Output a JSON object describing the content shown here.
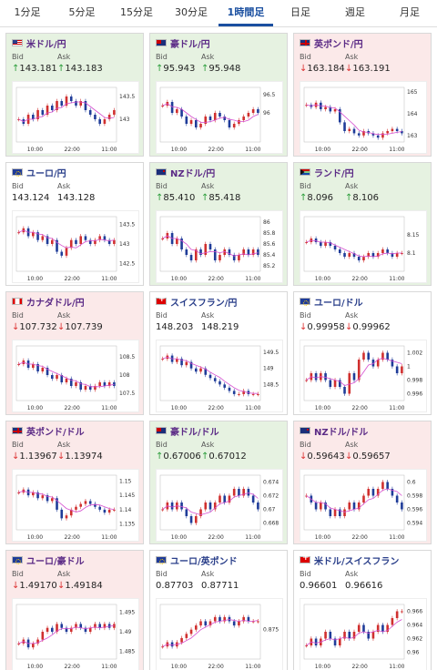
{
  "tabs": [
    {
      "label": "1分足",
      "active": false
    },
    {
      "label": "5分足",
      "active": false
    },
    {
      "label": "15分足",
      "active": false
    },
    {
      "label": "30分足",
      "active": false
    },
    {
      "label": "1時間足",
      "active": true
    },
    {
      "label": "日足",
      "active": false
    },
    {
      "label": "週足",
      "active": false
    },
    {
      "label": "月足",
      "active": false
    }
  ],
  "bid_label": "Bid",
  "ask_label": "Ask",
  "colors": {
    "up": "#2a9d3a",
    "down": "#d33",
    "tab_active": "#1a4fa0",
    "candle_up": "#d0302f",
    "candle_down": "#1f3c99",
    "ma": "#d64fd0"
  },
  "cards": [
    {
      "pair": "米ドル/円",
      "flag": "us",
      "trend": "up",
      "bid": "143.181",
      "ask": "143.183",
      "bid_dir": "up",
      "ask_dir": "up",
      "yticks": [
        "143.5",
        "143"
      ],
      "ylim": [
        142.5,
        143.7
      ],
      "xticks": [
        "10:00",
        "22:00",
        "11:00"
      ],
      "series": [
        143.0,
        142.9,
        143.1,
        143.0,
        143.2,
        143.1,
        143.3,
        143.2,
        143.4,
        143.3,
        143.5,
        143.4,
        143.3,
        143.4,
        143.2,
        143.1,
        143.0,
        142.9,
        143.0,
        143.1,
        143.2
      ]
    },
    {
      "pair": "豪ドル/円",
      "flag": "au",
      "trend": "up",
      "bid": "95.943",
      "ask": "95.948",
      "bid_dir": "up",
      "ask_dir": "up",
      "yticks": [
        "96.5",
        "96"
      ],
      "ylim": [
        95.2,
        96.7
      ],
      "xticks": [
        "10:00",
        "22:00",
        "11:00"
      ],
      "series": [
        96.2,
        96.3,
        96.0,
        96.1,
        95.9,
        95.7,
        95.8,
        95.6,
        95.7,
        95.9,
        95.8,
        96.0,
        95.9,
        95.8,
        95.6,
        95.7,
        95.8,
        95.9,
        96.0,
        96.1,
        96.0
      ]
    },
    {
      "pair": "英ポンド/円",
      "flag": "uk",
      "trend": "down",
      "bid": "163.184",
      "ask": "163.191",
      "bid_dir": "down",
      "ask_dir": "down",
      "yticks": [
        "165",
        "164",
        "163"
      ],
      "ylim": [
        162.7,
        165.2
      ],
      "xticks": [
        "10:00",
        "22:00",
        "11:00"
      ],
      "series": [
        164.4,
        164.3,
        164.5,
        164.2,
        164.3,
        164.1,
        164.2,
        163.6,
        163.2,
        163.3,
        163.1,
        163.0,
        163.2,
        163.1,
        163.0,
        162.9,
        163.1,
        163.2,
        163.3,
        163.2,
        163.1
      ]
    },
    {
      "pair": "ユーロ/円",
      "flag": "eu",
      "trend": "flat",
      "bid": "143.124",
      "ask": "143.128",
      "bid_dir": "none",
      "ask_dir": "none",
      "yticks": [
        "143.5",
        "143",
        "142.5"
      ],
      "ylim": [
        142.3,
        143.7
      ],
      "xticks": [
        "10:00",
        "22:00",
        "11:00"
      ],
      "series": [
        143.3,
        143.4,
        143.2,
        143.3,
        143.1,
        143.2,
        143.0,
        143.1,
        142.8,
        142.7,
        142.9,
        143.1,
        143.0,
        143.2,
        143.1,
        143.0,
        143.1,
        143.2,
        143.1,
        143.0,
        143.1
      ]
    },
    {
      "pair": "NZドル/円",
      "flag": "nz",
      "trend": "up",
      "bid": "85.410",
      "ask": "85.418",
      "bid_dir": "up",
      "ask_dir": "up",
      "yticks": [
        "86",
        "85.8",
        "85.6",
        "85.4",
        "85.2"
      ],
      "ylim": [
        85.1,
        86.1
      ],
      "xticks": [
        "10:00",
        "22:00",
        "11:00"
      ],
      "series": [
        85.7,
        85.8,
        85.6,
        85.7,
        85.5,
        85.4,
        85.3,
        85.5,
        85.4,
        85.6,
        85.5,
        85.3,
        85.4,
        85.5,
        85.4,
        85.3,
        85.4,
        85.5,
        85.4,
        85.5,
        85.4
      ]
    },
    {
      "pair": "ランド/円",
      "flag": "za",
      "trend": "up",
      "bid": "8.096",
      "ask": "8.106",
      "bid_dir": "up",
      "ask_dir": "up",
      "yticks": [
        "8.15",
        "8.1"
      ],
      "ylim": [
        8.05,
        8.2
      ],
      "xticks": [
        "10:00",
        "22:00",
        "11:00"
      ],
      "series": [
        8.13,
        8.14,
        8.13,
        8.12,
        8.13,
        8.12,
        8.11,
        8.1,
        8.09,
        8.1,
        8.09,
        8.08,
        8.09,
        8.1,
        8.09,
        8.1,
        8.11,
        8.1,
        8.09,
        8.1,
        8.1
      ]
    },
    {
      "pair": "カナダドル/円",
      "flag": "ca",
      "trend": "down",
      "bid": "107.732",
      "ask": "107.739",
      "bid_dir": "down",
      "ask_dir": "down",
      "yticks": [
        "108.5",
        "108",
        "107.5"
      ],
      "ylim": [
        107.3,
        108.8
      ],
      "xticks": [
        "10:00",
        "22:00",
        "11:00"
      ],
      "series": [
        108.3,
        108.4,
        108.2,
        108.3,
        108.1,
        108.2,
        108.0,
        107.9,
        108.0,
        107.8,
        107.9,
        107.7,
        107.8,
        107.6,
        107.7,
        107.6,
        107.7,
        107.8,
        107.7,
        107.8,
        107.7
      ]
    },
    {
      "pair": "スイスフラン/円",
      "flag": "ch",
      "trend": "flat",
      "bid": "148.203",
      "ask": "148.219",
      "bid_dir": "none",
      "ask_dir": "none",
      "yticks": [
        "149.5",
        "149",
        "148.5"
      ],
      "ylim": [
        148.0,
        149.7
      ],
      "xticks": [
        "10:00",
        "22:00",
        "11:00"
      ],
      "series": [
        149.3,
        149.4,
        149.2,
        149.3,
        149.1,
        149.2,
        149.0,
        148.9,
        149.0,
        148.8,
        148.7,
        148.6,
        148.5,
        148.4,
        148.3,
        148.2,
        148.2,
        148.3,
        148.2,
        148.2,
        148.2
      ]
    },
    {
      "pair": "ユーロ/ドル",
      "flag": "eu",
      "trend": "flat",
      "bid": "0.99958",
      "ask": "0.99962",
      "bid_dir": "down",
      "ask_dir": "down",
      "yticks": [
        "1.002",
        "1",
        "0.998",
        "0.996"
      ],
      "ylim": [
        0.995,
        1.003
      ],
      "xticks": [
        "10:00",
        "22:00",
        "11:00"
      ],
      "series": [
        0.998,
        0.999,
        0.998,
        0.999,
        0.998,
        0.997,
        0.998,
        0.997,
        0.996,
        0.999,
        0.998,
        1.001,
        1.002,
        1.001,
        1.0,
        1.001,
        1.002,
        1.001,
        1.0,
        0.999,
        1.0
      ]
    },
    {
      "pair": "英ポンド/ドル",
      "flag": "uk",
      "trend": "down",
      "bid": "1.13967",
      "ask": "1.13974",
      "bid_dir": "down",
      "ask_dir": "down",
      "yticks": [
        "1.15",
        "1.145",
        "1.14",
        "1.135"
      ],
      "ylim": [
        1.133,
        1.152
      ],
      "xticks": [
        "10:00",
        "22:00",
        "11:00"
      ],
      "series": [
        1.146,
        1.147,
        1.145,
        1.146,
        1.144,
        1.145,
        1.143,
        1.144,
        1.14,
        1.137,
        1.138,
        1.14,
        1.141,
        1.142,
        1.143,
        1.142,
        1.141,
        1.14,
        1.139,
        1.14,
        1.14
      ]
    },
    {
      "pair": "豪ドル/ドル",
      "flag": "au",
      "trend": "up",
      "bid": "0.67006",
      "ask": "0.67012",
      "bid_dir": "up",
      "ask_dir": "up",
      "yticks": [
        "0.674",
        "0.672",
        "0.67",
        "0.668"
      ],
      "ylim": [
        0.667,
        0.675
      ],
      "xticks": [
        "10:00",
        "22:00",
        "11:00"
      ],
      "series": [
        0.67,
        0.671,
        0.67,
        0.671,
        0.67,
        0.669,
        0.668,
        0.669,
        0.67,
        0.671,
        0.67,
        0.671,
        0.672,
        0.671,
        0.672,
        0.673,
        0.672,
        0.673,
        0.672,
        0.671,
        0.67
      ]
    },
    {
      "pair": "NZドル/ドル",
      "flag": "nz",
      "trend": "down",
      "bid": "0.59643",
      "ask": "0.59657",
      "bid_dir": "down",
      "ask_dir": "down",
      "yticks": [
        "0.6",
        "0.598",
        "0.596",
        "0.594"
      ],
      "ylim": [
        0.593,
        0.601
      ],
      "xticks": [
        "10:00",
        "22:00",
        "11:00"
      ],
      "series": [
        0.598,
        0.597,
        0.596,
        0.597,
        0.596,
        0.595,
        0.596,
        0.595,
        0.596,
        0.597,
        0.596,
        0.597,
        0.598,
        0.599,
        0.598,
        0.599,
        0.6,
        0.599,
        0.598,
        0.597,
        0.596
      ]
    },
    {
      "pair": "ユーロ/豪ドル",
      "flag": "eu",
      "trend": "down",
      "bid": "1.49170",
      "ask": "1.49184",
      "bid_dir": "down",
      "ask_dir": "down",
      "yticks": [
        "1.495",
        "1.49",
        "1.485"
      ],
      "ylim": [
        1.483,
        1.497
      ],
      "xticks": [
        "10:00",
        "22:00",
        "11:00"
      ],
      "series": [
        1.487,
        1.488,
        1.486,
        1.487,
        1.488,
        1.49,
        1.491,
        1.49,
        1.492,
        1.491,
        1.49,
        1.491,
        1.492,
        1.491,
        1.49,
        1.491,
        1.492,
        1.491,
        1.492,
        1.491,
        1.492
      ]
    },
    {
      "pair": "ユーロ/英ポンド",
      "flag": "eu",
      "trend": "flat",
      "bid": "0.87703",
      "ask": "0.87711",
      "bid_dir": "none",
      "ask_dir": "none",
      "yticks": [
        "0.875"
      ],
      "ylim": [
        0.868,
        0.881
      ],
      "xticks": [
        "10:00",
        "22:00",
        "11:00"
      ],
      "series": [
        0.871,
        0.872,
        0.871,
        0.872,
        0.873,
        0.874,
        0.875,
        0.876,
        0.877,
        0.876,
        0.877,
        0.878,
        0.877,
        0.878,
        0.877,
        0.876,
        0.877,
        0.878,
        0.877,
        0.877,
        0.877
      ]
    },
    {
      "pair": "米ドル/スイスフラン",
      "flag": "ch",
      "trend": "flat",
      "bid": "0.96601",
      "ask": "0.96616",
      "bid_dir": "none",
      "ask_dir": "none",
      "yticks": [
        "0.966",
        "0.964",
        "0.962",
        "0.96"
      ],
      "ylim": [
        0.959,
        0.967
      ],
      "xticks": [
        "10:00",
        "22:00",
        "11:00"
      ],
      "series": [
        0.961,
        0.962,
        0.961,
        0.962,
        0.963,
        0.962,
        0.961,
        0.962,
        0.963,
        0.962,
        0.963,
        0.964,
        0.963,
        0.962,
        0.963,
        0.964,
        0.963,
        0.964,
        0.965,
        0.966,
        0.966
      ]
    }
  ]
}
